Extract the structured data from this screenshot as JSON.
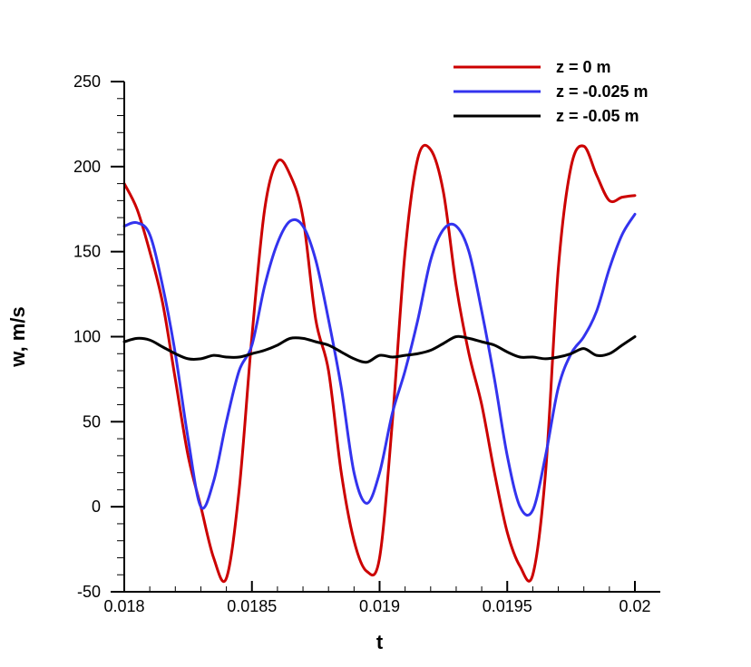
{
  "chart_data": {
    "type": "line",
    "title": "",
    "xlabel": "t",
    "ylabel": "w, m/s",
    "xlim": [
      0.018,
      0.02
    ],
    "ylim": [
      -50,
      250
    ],
    "x_ticks": [
      0.018,
      0.0185,
      0.019,
      0.0195,
      0.02
    ],
    "x_tick_labels": [
      "0.018",
      "0.0185",
      "0.019",
      "0.0195",
      "0.02"
    ],
    "y_ticks": [
      -50,
      0,
      50,
      100,
      150,
      200,
      250
    ],
    "y_tick_labels": [
      "-50",
      "0",
      "50",
      "100",
      "150",
      "200",
      "250"
    ],
    "grid": false,
    "legend_position": "top-right",
    "series": [
      {
        "name": "z = 0 m",
        "color": "#cc0000",
        "x": [
          0.018,
          0.01805,
          0.0181,
          0.01815,
          0.0182,
          0.01825,
          0.0183,
          0.01835,
          0.0184,
          0.01845,
          0.0185,
          0.01855,
          0.0186,
          0.01865,
          0.0187,
          0.01875,
          0.0188,
          0.01885,
          0.0189,
          0.01895,
          0.019,
          0.01905,
          0.0191,
          0.01915,
          0.0192,
          0.01925,
          0.0193,
          0.01935,
          0.0194,
          0.01945,
          0.0195,
          0.01955,
          0.0196,
          0.01965,
          0.0197,
          0.01975,
          0.0198,
          0.01985,
          0.0199,
          0.01995,
          0.02
        ],
        "values": [
          190,
          175,
          150,
          120,
          75,
          30,
          0,
          -30,
          -42,
          10,
          100,
          175,
          203,
          195,
          170,
          110,
          80,
          20,
          -20,
          -38,
          -30,
          50,
          150,
          205,
          210,
          185,
          130,
          90,
          60,
          20,
          -15,
          -35,
          -40,
          20,
          140,
          200,
          212,
          195,
          180,
          182,
          183
        ]
      },
      {
        "name": "z = -0.025 m",
        "color": "#3333ee",
        "x": [
          0.018,
          0.01805,
          0.0181,
          0.01815,
          0.0182,
          0.01825,
          0.0183,
          0.01835,
          0.0184,
          0.01845,
          0.0185,
          0.01855,
          0.0186,
          0.01865,
          0.0187,
          0.01875,
          0.0188,
          0.01885,
          0.0189,
          0.01895,
          0.019,
          0.01905,
          0.0191,
          0.01915,
          0.0192,
          0.01925,
          0.0193,
          0.01935,
          0.0194,
          0.01945,
          0.0195,
          0.01955,
          0.0196,
          0.01965,
          0.0197,
          0.01975,
          0.0198,
          0.01985,
          0.0199,
          0.01995,
          0.02
        ],
        "values": [
          165,
          167,
          160,
          130,
          90,
          40,
          0,
          15,
          50,
          80,
          95,
          130,
          155,
          168,
          165,
          145,
          110,
          70,
          20,
          2,
          20,
          55,
          80,
          110,
          145,
          163,
          165,
          150,
          115,
          75,
          30,
          0,
          -2,
          30,
          70,
          90,
          100,
          115,
          140,
          160,
          172
        ]
      },
      {
        "name": "z = -0.05 m",
        "color": "#000000",
        "x": [
          0.018,
          0.01805,
          0.0181,
          0.01815,
          0.0182,
          0.01825,
          0.0183,
          0.01835,
          0.0184,
          0.01845,
          0.0185,
          0.01855,
          0.0186,
          0.01865,
          0.0187,
          0.01875,
          0.0188,
          0.01885,
          0.0189,
          0.01895,
          0.019,
          0.01905,
          0.0191,
          0.01915,
          0.0192,
          0.01925,
          0.0193,
          0.01935,
          0.0194,
          0.01945,
          0.0195,
          0.01955,
          0.0196,
          0.01965,
          0.0197,
          0.01975,
          0.0198,
          0.01985,
          0.0199,
          0.01995,
          0.02
        ],
        "values": [
          97,
          99,
          98,
          94,
          90,
          87,
          87,
          89,
          88,
          88,
          90,
          92,
          95,
          99,
          99,
          97,
          95,
          91,
          87,
          85,
          89,
          88,
          89,
          90,
          92,
          96,
          100,
          99,
          97,
          95,
          91,
          88,
          88,
          87,
          88,
          90,
          93,
          89,
          90,
          95,
          100
        ]
      }
    ]
  }
}
